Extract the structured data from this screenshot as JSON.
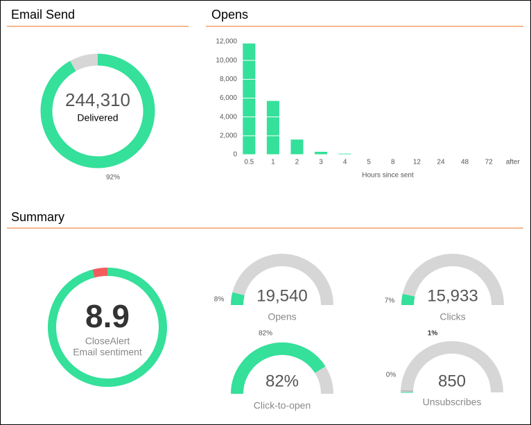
{
  "sections": [
    "Email Send",
    "Opens",
    "Summary"
  ],
  "chart_data": [
    {
      "type": "donut",
      "values": [
        92,
        8
      ],
      "colors": [
        "#34e09a",
        "#d6d6d6"
      ],
      "value_label": "92%",
      "center_value": "244,310",
      "center_label": "Delivered"
    },
    {
      "type": "bar",
      "categories": [
        "0.5",
        "1",
        "2",
        "3",
        "4",
        "5",
        "8",
        "12",
        "24",
        "48",
        "72",
        "after"
      ],
      "values": [
        11800,
        5700,
        1600,
        300,
        100,
        0,
        0,
        0,
        0,
        0,
        0,
        0
      ],
      "color": "#34e09a",
      "ylim": [
        0,
        12000
      ],
      "yticks": [
        0,
        {
          "value": 2000,
          "label": "2,000"
        },
        {
          "value": 4000,
          "label": "4,000"
        },
        {
          "value": 6000,
          "label": "6,000"
        },
        {
          "value": 8000,
          "label": "8,000"
        },
        {
          "value": 10000,
          "label": "10,000"
        },
        {
          "value": 12000,
          "label": "12,000"
        }
      ],
      "xlabel": "Hours since sent"
    },
    {
      "type": "donut",
      "values": [
        96,
        4
      ],
      "colors": [
        "#34e09a",
        "#f25c5c"
      ],
      "center_value": "8.9",
      "center_label": "CloseAlert",
      "center_sublabel": "Email sentiment"
    },
    {
      "type": "gauge",
      "value": 8,
      "value_label": "8%",
      "center_value": "19,540",
      "caption": "Opens",
      "color": "#34e09a"
    },
    {
      "type": "gauge",
      "value": 7,
      "value_label": "7%",
      "center_value": "15,933",
      "caption": "Clicks",
      "color": "#34e09a"
    },
    {
      "type": "gauge",
      "value": 82,
      "value_label": "82%",
      "center_value": "82%",
      "caption": "Click-to-open",
      "color": "#34e09a"
    },
    {
      "type": "gauge",
      "value": 0,
      "value_label": "0%",
      "marker": 1,
      "marker_label": "1%",
      "center_value": "850",
      "caption": "Unsubscribes",
      "color": "#34e09a"
    }
  ]
}
